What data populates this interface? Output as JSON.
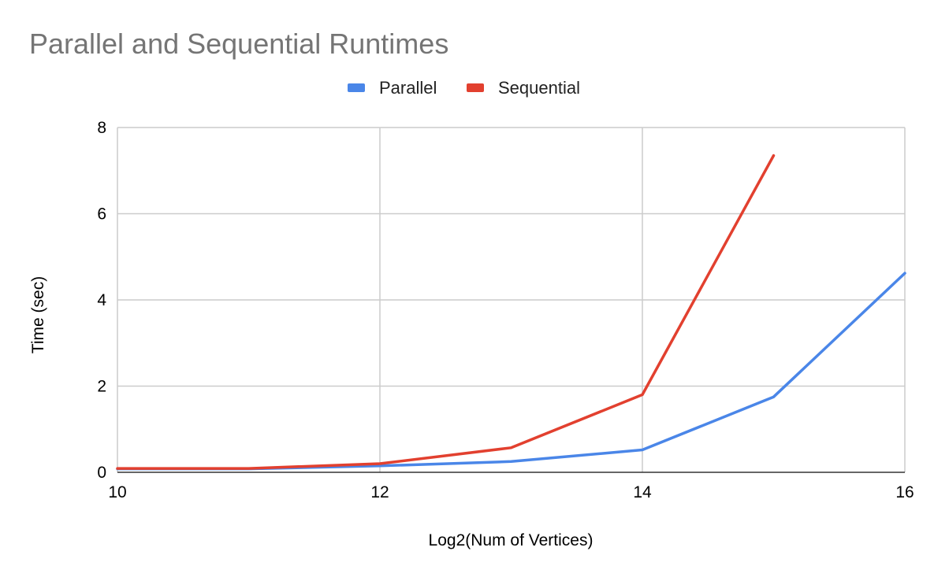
{
  "chart_data": {
    "type": "line",
    "title": "Parallel and Sequential Runtimes",
    "xlabel": "Log2(Num of Vertices)",
    "ylabel": "Time (sec)",
    "xlim": [
      10,
      16
    ],
    "ylim": [
      0,
      8
    ],
    "x_ticks": [
      10,
      12,
      14,
      16
    ],
    "y_ticks": [
      0,
      2,
      4,
      6,
      8
    ],
    "grid": true,
    "legend_position": "top",
    "series": [
      {
        "name": "Parallel",
        "color": "#4a86e8",
        "x": [
          10,
          11,
          12,
          13,
          14,
          15,
          16
        ],
        "values": [
          0.08,
          0.08,
          0.15,
          0.25,
          0.52,
          1.75,
          4.62
        ]
      },
      {
        "name": "Sequential",
        "color": "#e2402f",
        "x": [
          10,
          11,
          12,
          13,
          14,
          15
        ],
        "values": [
          0.09,
          0.09,
          0.2,
          0.57,
          1.8,
          7.35
        ]
      }
    ]
  }
}
